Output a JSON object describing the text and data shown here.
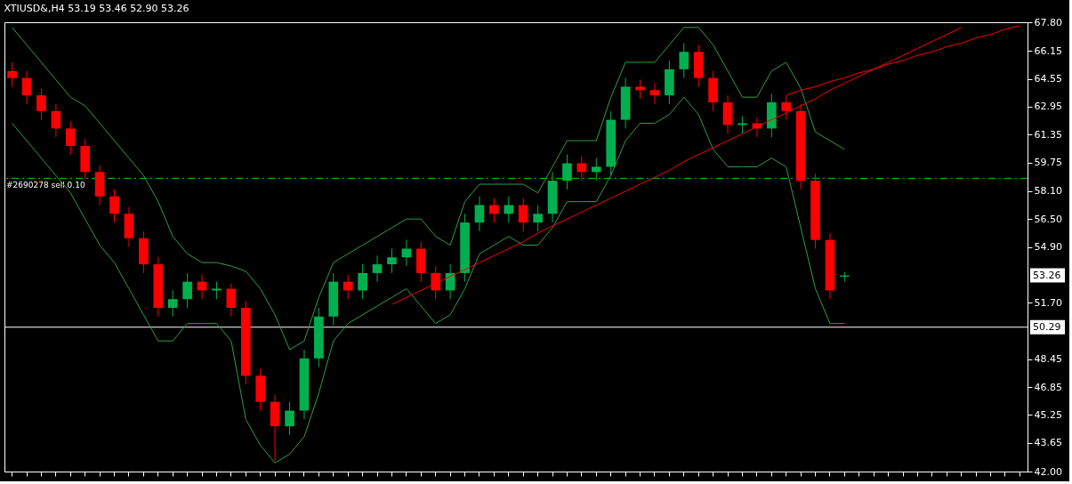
{
  "chart_data": {
    "type": "candlestick",
    "title": "XTIUSD&,H4  53.19 53.46 52.90 53.26",
    "categories": [
      null,
      null,
      null,
      null,
      null,
      null,
      null,
      null,
      null,
      null,
      null,
      null,
      null,
      null,
      null,
      null,
      null,
      null,
      null,
      null,
      null,
      null,
      null,
      null,
      null,
      null,
      null,
      null,
      null,
      null,
      null,
      null,
      null,
      null,
      null,
      null,
      null,
      null,
      null,
      null,
      null,
      null,
      null,
      null,
      null,
      null,
      null,
      null,
      null,
      null,
      null,
      null,
      null,
      null,
      null,
      null,
      null,
      null,
      null,
      null,
      null,
      null,
      null,
      null,
      null,
      null,
      null,
      null,
      null,
      null
    ],
    "ohlc": [
      [
        65.0,
        65.5,
        64.1,
        64.6
      ],
      [
        64.6,
        65.0,
        63.1,
        63.6
      ],
      [
        63.6,
        64.0,
        62.2,
        62.7
      ],
      [
        62.7,
        63.1,
        61.2,
        61.7
      ],
      [
        61.7,
        62.1,
        60.2,
        60.7
      ],
      [
        60.7,
        61.1,
        58.7,
        59.2
      ],
      [
        59.2,
        59.6,
        57.3,
        57.8
      ],
      [
        57.8,
        58.2,
        56.3,
        56.8
      ],
      [
        56.8,
        57.2,
        54.9,
        55.4
      ],
      [
        55.4,
        55.8,
        53.4,
        53.9
      ],
      [
        53.9,
        54.3,
        50.9,
        51.4
      ],
      [
        51.4,
        52.4,
        50.9,
        51.9
      ],
      [
        51.9,
        53.4,
        51.4,
        52.9
      ],
      [
        52.9,
        53.3,
        51.9,
        52.4
      ],
      [
        52.4,
        52.9,
        51.9,
        52.5
      ],
      [
        52.5,
        52.8,
        50.9,
        51.4
      ],
      [
        51.4,
        51.8,
        47.0,
        47.5
      ],
      [
        47.5,
        47.9,
        45.5,
        46.0
      ],
      [
        46.0,
        46.4,
        42.6,
        44.6
      ],
      [
        44.6,
        46.0,
        44.1,
        45.5
      ],
      [
        45.5,
        49.0,
        45.0,
        48.5
      ],
      [
        48.5,
        51.4,
        48.0,
        50.9
      ],
      [
        50.9,
        53.4,
        50.4,
        52.9
      ],
      [
        52.9,
        53.3,
        51.9,
        52.4
      ],
      [
        52.4,
        53.9,
        51.9,
        53.4
      ],
      [
        53.4,
        54.4,
        52.9,
        53.9
      ],
      [
        53.9,
        54.8,
        53.4,
        54.3
      ],
      [
        54.3,
        55.3,
        53.8,
        54.8
      ],
      [
        54.8,
        55.2,
        52.9,
        53.4
      ],
      [
        53.4,
        53.8,
        51.9,
        52.4
      ],
      [
        52.4,
        53.9,
        51.9,
        53.4
      ],
      [
        53.4,
        56.8,
        52.9,
        56.3
      ],
      [
        56.3,
        57.8,
        55.8,
        57.3
      ],
      [
        57.3,
        57.7,
        56.3,
        56.8
      ],
      [
        56.8,
        57.8,
        56.3,
        57.3
      ],
      [
        57.3,
        57.7,
        55.8,
        56.3
      ],
      [
        56.3,
        57.3,
        55.8,
        56.8
      ],
      [
        56.8,
        59.2,
        56.3,
        58.7
      ],
      [
        58.7,
        60.2,
        58.2,
        59.7
      ],
      [
        59.7,
        60.1,
        58.7,
        59.2
      ],
      [
        59.2,
        60.0,
        58.7,
        59.5
      ],
      [
        59.5,
        62.7,
        59.0,
        62.2
      ],
      [
        62.2,
        64.6,
        61.7,
        64.1
      ],
      [
        64.1,
        64.5,
        63.4,
        63.9
      ],
      [
        63.9,
        64.3,
        63.1,
        63.6
      ],
      [
        63.6,
        65.6,
        63.1,
        65.1
      ],
      [
        65.1,
        66.6,
        64.6,
        66.1
      ],
      [
        66.1,
        66.5,
        64.1,
        64.6
      ],
      [
        64.6,
        65.0,
        62.7,
        63.2
      ],
      [
        63.2,
        63.6,
        61.4,
        61.9
      ],
      [
        61.9,
        62.4,
        61.4,
        62.0
      ],
      [
        62.0,
        62.3,
        61.2,
        61.7
      ],
      [
        61.7,
        63.7,
        61.2,
        63.2
      ],
      [
        63.2,
        63.6,
        62.2,
        62.7
      ],
      [
        62.7,
        63.1,
        58.2,
        58.7
      ],
      [
        58.7,
        59.1,
        54.8,
        55.3
      ],
      [
        55.3,
        55.7,
        51.9,
        52.4
      ],
      [
        53.19,
        53.46,
        52.9,
        53.26
      ],
      null,
      null,
      null,
      null,
      null,
      null,
      null,
      null,
      null,
      null,
      null,
      null
    ],
    "colors": [
      "#ff0000",
      "#ff0000",
      "#ff0000",
      "#ff0000",
      "#ff0000",
      "#ff0000",
      "#ff0000",
      "#ff0000",
      "#ff0000",
      "#ff0000",
      "#ff0000",
      "#00b050",
      "#00b050",
      "#ff0000",
      "#00b050",
      "#ff0000",
      "#ff0000",
      "#ff0000",
      "#ff0000",
      "#00b050",
      "#00b050",
      "#00b050",
      "#00b050",
      "#ff0000",
      "#00b050",
      "#00b050",
      "#00b050",
      "#00b050",
      "#ff0000",
      "#ff0000",
      "#00b050",
      "#00b050",
      "#00b050",
      "#ff0000",
      "#00b050",
      "#ff0000",
      "#00b050",
      "#00b050",
      "#00b050",
      "#ff0000",
      "#00b050",
      "#00b050",
      "#00b050",
      "#ff0000",
      "#ff0000",
      "#00b050",
      "#00b050",
      "#ff0000",
      "#ff0000",
      "#ff0000",
      "#00b050",
      "#ff0000",
      "#00b050",
      "#ff0000",
      "#ff0000",
      "#ff0000",
      "#ff0000",
      "#00b050",
      null,
      null,
      null,
      null,
      null,
      null,
      null,
      null,
      null,
      null,
      null,
      null
    ],
    "series": [
      {
        "type": "line",
        "color": "#2f9e44",
        "values": [
          67.5,
          66.5,
          65.5,
          64.5,
          63.5,
          63.0,
          62.0,
          61.0,
          60.0,
          59.0,
          57.5,
          55.5,
          54.5,
          54.0,
          54.0,
          53.8,
          53.5,
          52.5,
          51.0,
          49.0,
          49.5,
          52.0,
          54.0,
          54.5,
          55.0,
          55.5,
          56.0,
          56.5,
          56.5,
          55.5,
          55.0,
          57.5,
          58.5,
          58.5,
          58.5,
          58.5,
          58.0,
          59.5,
          61.0,
          61.0,
          61.0,
          63.5,
          65.5,
          65.5,
          65.5,
          66.5,
          67.5,
          67.5,
          66.5,
          65.0,
          63.5,
          63.5,
          65.0,
          65.5,
          64.0,
          61.5,
          61.0,
          60.5,
          null,
          null,
          null,
          null,
          null,
          null,
          null,
          null,
          null,
          null,
          null,
          null
        ]
      },
      {
        "type": "line",
        "color": "#2f9e44",
        "values": [
          62.0,
          61.0,
          60.0,
          59.0,
          58.0,
          56.5,
          55.0,
          54.0,
          52.5,
          51.0,
          49.5,
          49.5,
          50.5,
          50.5,
          50.5,
          49.5,
          45.0,
          43.5,
          42.5,
          43.0,
          44.0,
          46.5,
          49.5,
          50.5,
          51.0,
          51.5,
          52.0,
          52.5,
          51.5,
          50.5,
          51.0,
          52.5,
          54.5,
          55.0,
          55.5,
          55.0,
          55.0,
          56.0,
          57.5,
          57.5,
          57.5,
          59.0,
          61.0,
          62.0,
          62.0,
          62.5,
          63.5,
          62.5,
          60.5,
          59.5,
          59.5,
          59.5,
          60.0,
          59.5,
          56.0,
          52.5,
          50.5,
          50.5,
          null,
          null,
          null,
          null,
          null,
          null,
          null,
          null,
          null,
          null,
          null,
          null
        ]
      },
      {
        "type": "line",
        "color": "#ff0000",
        "values": [
          null,
          null,
          null,
          null,
          null,
          null,
          null,
          null,
          null,
          null,
          null,
          null,
          null,
          null,
          null,
          null,
          null,
          null,
          null,
          null,
          null,
          null,
          null,
          null,
          null,
          null,
          51.6,
          52.0,
          52.4,
          52.8,
          53.2,
          53.6,
          54.0,
          54.4,
          54.8,
          55.2,
          55.7,
          56.1,
          56.5,
          56.9,
          57.3,
          57.7,
          58.1,
          58.5,
          58.9,
          59.3,
          59.8,
          60.2,
          60.6,
          61.0,
          61.4,
          61.8,
          62.2,
          62.6,
          63.0,
          63.4,
          63.9,
          64.3,
          64.7,
          65.1,
          65.5,
          65.9,
          66.3,
          66.7,
          67.1,
          67.5,
          null,
          null,
          null,
          null
        ]
      },
      {
        "type": "line",
        "color": "#ff0000",
        "values": [
          null,
          null,
          null,
          null,
          null,
          null,
          null,
          null,
          null,
          null,
          null,
          null,
          null,
          null,
          null,
          null,
          null,
          null,
          null,
          null,
          null,
          null,
          null,
          null,
          null,
          null,
          null,
          null,
          null,
          null,
          null,
          null,
          null,
          null,
          null,
          null,
          null,
          null,
          null,
          null,
          null,
          null,
          null,
          null,
          null,
          null,
          null,
          null,
          null,
          null,
          null,
          null,
          null,
          63.6,
          63.9,
          64.1,
          64.4,
          64.6,
          64.9,
          65.1,
          65.4,
          65.6,
          65.9,
          66.1,
          66.4,
          66.6,
          66.9,
          67.1,
          67.4,
          67.6
        ]
      }
    ],
    "ylim": [
      42.0,
      67.8
    ],
    "yticks": [
      {
        "value": 42.0,
        "label": "42.00"
      },
      {
        "value": 43.65,
        "label": "43.65"
      },
      {
        "value": 45.25,
        "label": "45.25"
      },
      {
        "value": 46.85,
        "label": "46.85"
      },
      {
        "value": 48.45,
        "label": "48.45"
      },
      {
        "value": 51.7,
        "label": "51.70"
      },
      {
        "value": 54.9,
        "label": "54.90"
      },
      {
        "value": 56.5,
        "label": "56.50"
      },
      {
        "value": 58.1,
        "label": "58.10"
      },
      {
        "value": 59.75,
        "label": "59.75"
      },
      {
        "value": 61.35,
        "label": "61.35"
      },
      {
        "value": 62.95,
        "label": "62.95"
      },
      {
        "value": 64.55,
        "label": "64.55"
      },
      {
        "value": 66.15,
        "label": "66.15"
      },
      {
        "value": 67.8,
        "label": "67.80"
      }
    ],
    "ref_lines": [
      {
        "axis": "y",
        "value": 58.84,
        "label": "#2690278 sell 0.10",
        "color": "#00cc00",
        "line_style": "dashed"
      },
      {
        "axis": "y",
        "value": 50.29,
        "label": "50.29",
        "color": "#ffffff",
        "line_style": "solid"
      }
    ],
    "annotations": [
      {
        "text": "53.26",
        "y": 53.26
      }
    ],
    "tick_labels": "y",
    "grid": false
  }
}
